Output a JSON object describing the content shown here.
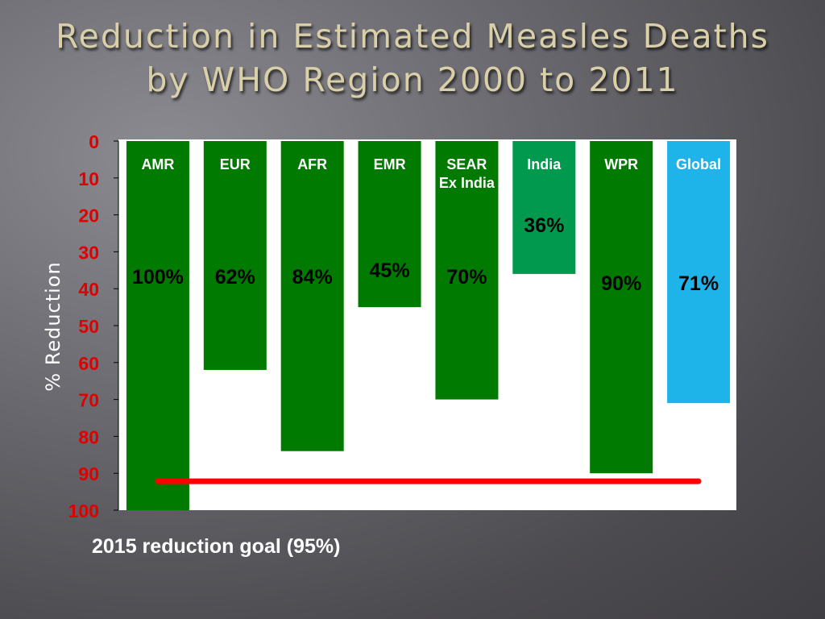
{
  "slide": {
    "title_line1": "Reduction in Estimated Measles Deaths",
    "title_line2": "by WHO Region 2000 to 2011",
    "caption": "2015 reduction goal (95%)"
  },
  "chart_data": {
    "type": "bar",
    "orientation": "vertical-downward",
    "title": "Reduction in Estimated Measles Deaths by WHO Region 2000 to 2011",
    "ylabel": "% Reduction",
    "ylim": [
      0,
      100
    ],
    "y_inverted": true,
    "yticks": [
      0,
      10,
      20,
      30,
      40,
      50,
      60,
      70,
      80,
      90,
      100
    ],
    "categories": [
      {
        "lines": [
          "AMR"
        ]
      },
      {
        "lines": [
          "EUR"
        ]
      },
      {
        "lines": [
          "AFR"
        ]
      },
      {
        "lines": [
          "EMR"
        ]
      },
      {
        "lines": [
          "SEAR",
          "Ex India"
        ]
      },
      {
        "lines": [
          "India"
        ]
      },
      {
        "lines": [
          "WPR"
        ]
      },
      {
        "lines": [
          "Global"
        ]
      }
    ],
    "values": [
      100,
      62,
      84,
      45,
      70,
      36,
      90,
      71
    ],
    "value_labels": [
      "100%",
      "62%",
      "84%",
      "45%",
      "70%",
      "36%",
      "90%",
      "71%"
    ],
    "bar_colors": [
      "#007a00",
      "#007a00",
      "#007a00",
      "#007a00",
      "#007a00",
      "#00994d",
      "#007a00",
      "#1eb4ea"
    ],
    "category_label_colors": [
      "#ffffff",
      "#ffffff",
      "#ffffff",
      "#ffffff",
      "#ffffff",
      "#ffffff",
      "#ffffff",
      "#ffffff"
    ],
    "goal_line": {
      "value": 95,
      "color": "#ff0000"
    },
    "tick_color": "#e00000",
    "ylabel_color": "#ffffff",
    "grid": false
  }
}
